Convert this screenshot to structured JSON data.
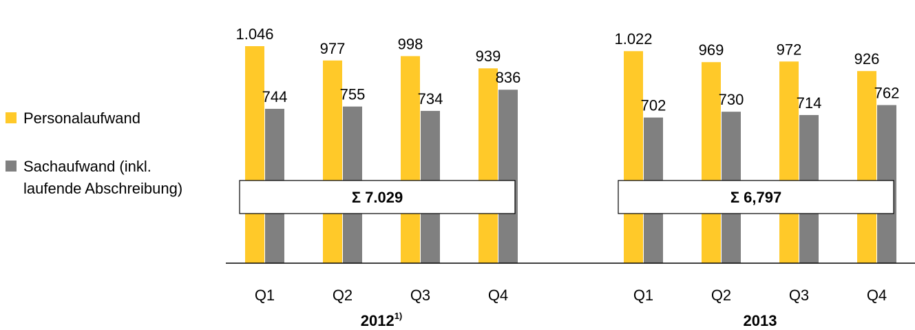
{
  "chart_data": {
    "type": "bar",
    "categories": [
      "Q1",
      "Q2",
      "Q3",
      "Q4"
    ],
    "groups": [
      {
        "year_label": "2012",
        "year_footnote": "1)",
        "sum_label": "Σ  7.029",
        "series": [
          {
            "name": "Personalaufwand",
            "values": [
              1046,
              977,
              998,
              939
            ],
            "value_labels": [
              "1.046",
              "977",
              "998",
              "939"
            ]
          },
          {
            "name": "Sachaufwand (inkl. laufende Abschreibung)",
            "values": [
              744,
              755,
              734,
              836
            ],
            "value_labels": [
              "744",
              "755",
              "734",
              "836"
            ]
          }
        ]
      },
      {
        "year_label": "2013",
        "year_footnote": "",
        "sum_label": "Σ 6,797",
        "series": [
          {
            "name": "Personalaufwand",
            "values": [
              1022,
              969,
              972,
              926
            ],
            "value_labels": [
              "1.022",
              "969",
              "972",
              "926"
            ]
          },
          {
            "name": "Sachaufwand (inkl. laufende Abschreibung)",
            "values": [
              702,
              730,
              714,
              762
            ],
            "value_labels": [
              "702",
              "730",
              "714",
              "762"
            ]
          }
        ]
      }
    ],
    "legend": {
      "placement": "left",
      "items": [
        {
          "label_lines": [
            "Personalaufwand"
          ],
          "color": "#ffc929"
        },
        {
          "label_lines": [
            "Sachaufwand (inkl.",
            "laufende Abschreibung)"
          ],
          "color": "#808080"
        }
      ]
    },
    "ylim": [
      0,
      1120
    ],
    "grid": false,
    "colors": {
      "personal": "#ffc929",
      "sach": "#808080",
      "axis": "#000000"
    }
  }
}
